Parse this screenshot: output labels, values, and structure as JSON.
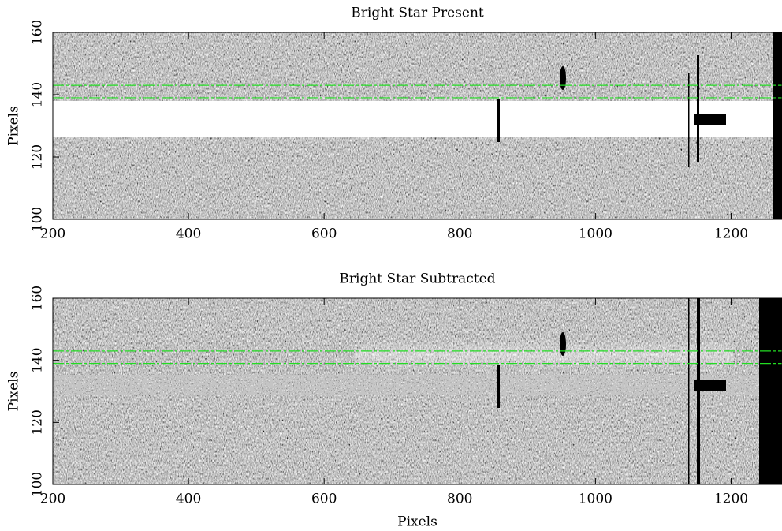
{
  "chart_data": [
    {
      "type": "image",
      "title": "Bright Star Present",
      "ylabel": "Pixels",
      "xlim": [
        200,
        1275
      ],
      "ylim": [
        100,
        160
      ],
      "xticks": [
        200,
        400,
        600,
        800,
        1000,
        1200
      ],
      "yticks": [
        100,
        120,
        140,
        160
      ],
      "hlines": [
        139,
        143
      ],
      "hline_color": "#22dd22"
    },
    {
      "type": "image",
      "title": "Bright Star Subtracted",
      "xlabel": "Pixels",
      "ylabel": "Pixels",
      "xlim": [
        200,
        1275
      ],
      "ylim": [
        100,
        160
      ],
      "xticks": [
        200,
        400,
        600,
        800,
        1000,
        1200
      ],
      "yticks": [
        100,
        120,
        140,
        160
      ],
      "hlines": [
        139,
        143
      ],
      "hline_color": "#22dd22"
    }
  ]
}
